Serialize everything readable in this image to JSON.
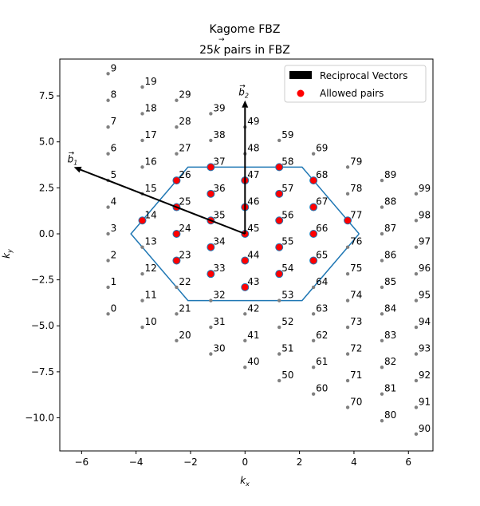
{
  "chart_data": {
    "type": "scatter",
    "title": "Kagome FBZ",
    "subtitle_prefix": "25",
    "subtitle_k": "k",
    "subtitle_suffix": " pairs in FBZ",
    "xlabel_main": "k",
    "xlabel_sub": "x",
    "ylabel_main": "k",
    "ylabel_sub": "y",
    "xlim": [
      -6.8,
      6.9
    ],
    "ylim": [
      -11.8,
      9.5
    ],
    "xticks": [
      -6,
      -4,
      -2,
      0,
      2,
      4,
      6
    ],
    "yticks": [
      -10.0,
      -7.5,
      -5.0,
      -2.5,
      0.0,
      2.5,
      5.0,
      7.5
    ],
    "xtick_labels": [
      "−6",
      "−4",
      "−2",
      "0",
      "2",
      "4",
      "6"
    ],
    "ytick_labels": [
      "−10.0",
      "−7.5",
      "−5.0",
      "−2.5",
      "0.0",
      "2.5",
      "5.0",
      "7.5"
    ],
    "grid": false,
    "legend_position": "top-right",
    "legend": [
      {
        "label": "Reciprocal Vectors",
        "kind": "patch",
        "color": "#000000"
      },
      {
        "label": "Allowed pairs",
        "kind": "dot",
        "color": "#ff0000"
      }
    ],
    "lattice": {
      "b1": [
        -1.25664,
        0.72552
      ],
      "b2": [
        0.0,
        1.45104
      ],
      "origin": [
        -5.02655,
        -4.35312
      ],
      "columns": 10,
      "rows": 10,
      "point_color": "#808080",
      "label_indices": [
        0,
        1,
        2,
        3,
        4,
        5,
        6,
        7,
        8,
        9,
        10,
        11,
        12,
        13,
        14,
        15,
        16,
        17,
        18,
        19,
        20,
        21,
        22,
        23,
        24,
        25,
        26,
        27,
        28,
        29,
        30,
        31,
        32,
        33,
        34,
        35,
        36,
        37,
        38,
        39,
        40,
        41,
        42,
        43,
        44,
        45,
        46,
        47,
        48,
        49,
        50,
        51,
        52,
        53,
        54,
        55,
        56,
        57,
        58,
        59,
        60,
        61,
        62,
        63,
        64,
        65,
        66,
        67,
        68,
        69,
        70,
        71,
        72,
        73,
        74,
        75,
        76,
        77,
        78,
        79,
        80,
        81,
        82,
        83,
        84,
        85,
        86,
        87,
        88,
        89,
        90,
        91,
        92,
        93,
        94,
        95,
        96,
        97,
        98,
        99
      ]
    },
    "allowed_indices": [
      14,
      23,
      24,
      25,
      26,
      33,
      34,
      35,
      36,
      37,
      43,
      44,
      45,
      46,
      47,
      54,
      55,
      56,
      57,
      58,
      65,
      66,
      67,
      68,
      77
    ],
    "allowed_color": "#ff0000",
    "allowed_edge": "#1f77b4",
    "fbz_hexagon": {
      "color": "#1f77b4",
      "vertices": [
        [
          4.18879,
          0.0
        ],
        [
          2.0944,
          3.6276
        ],
        [
          -2.0944,
          3.6276
        ],
        [
          -4.18879,
          0.0
        ],
        [
          -2.0944,
          -3.6276
        ],
        [
          2.0944,
          -3.6276
        ]
      ]
    },
    "vectors": [
      {
        "name": "b1",
        "label": "b",
        "sub": "1",
        "from": [
          0,
          0
        ],
        "to": [
          -6.28319,
          3.6276
        ],
        "color": "#000000"
      },
      {
        "name": "b2",
        "label": "b",
        "sub": "2",
        "from": [
          0,
          0
        ],
        "to": [
          0,
          7.2552
        ],
        "color": "#000000"
      }
    ]
  }
}
